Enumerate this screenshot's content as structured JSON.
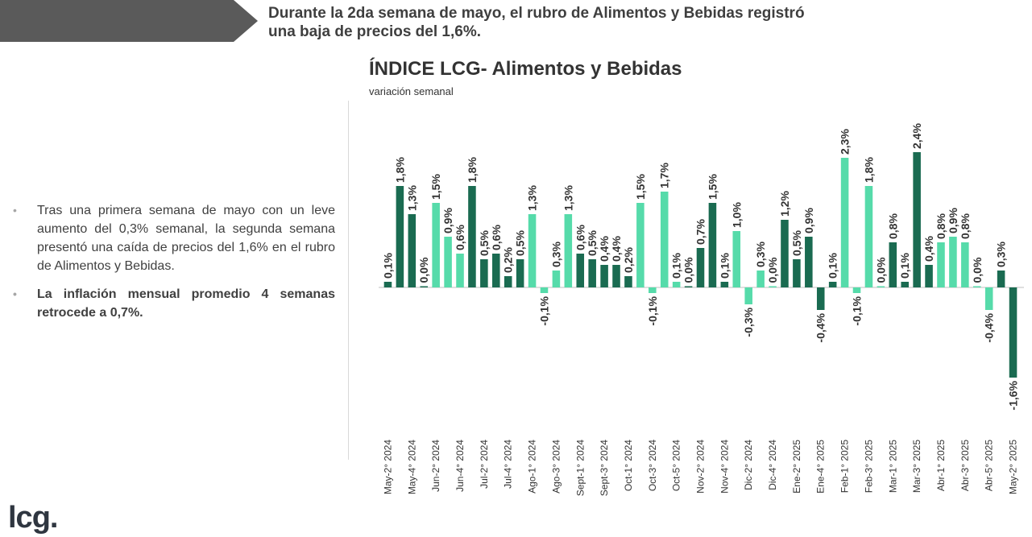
{
  "header": {
    "headline_line1": "Durante la 2da semana de mayo, el rubro de Alimentos y Bebidas registró",
    "headline_line2": "una baja de precios del 1,6%."
  },
  "bullets": [
    "Tras una primera semana de mayo con un leve aumento del 0,3% semanal, la segunda semana presentó una caída de precios del 1,6% en el rubro de Alimentos y Bebidas.",
    "La inflación mensual promedio 4 semanas retrocede a 0,7%."
  ],
  "logo": "lcg.",
  "colors": {
    "dark_bar": "#1a6b51",
    "light_bar": "#56dbaa",
    "banner": "#5a5a5a"
  },
  "chart_data": {
    "type": "bar",
    "title": "ÍNDICE LCG- Alimentos y Bebidas",
    "subtitle": "variación semanal",
    "ylim": [
      -1.7,
      2.6
    ],
    "grid": false,
    "categories": [
      "May-2° 2024",
      "",
      "May-4° 2024",
      "",
      "Jun-2° 2024",
      "",
      "Jun-4° 2024",
      "",
      "Jul-2° 2024",
      "",
      "Jul-4° 2024",
      "",
      "Ago-1° 2024",
      "",
      "Ago-3° 2024",
      "",
      "Sept-1° 2024",
      "",
      "Sept-3° 2024",
      "",
      "Oct-1° 2024",
      "",
      "Oct-3° 2024",
      "",
      "Oct-5° 2024",
      "",
      "Nov-2° 2024",
      "",
      "Nov-4° 2024",
      "",
      "Dic-2° 2024",
      "",
      "Dic-4° 2024",
      "",
      "Ene-2° 2025",
      "",
      "Ene-4° 2025",
      "",
      "Feb-1° 2025",
      "",
      "Feb-3° 2025",
      "",
      "Mar-1° 2025",
      "",
      "Mar-3° 2025",
      "",
      "Abr-1° 2025",
      "",
      "Abr-3° 2025",
      "",
      "Abr-5° 2025",
      "",
      "May-2° 2025"
    ],
    "values": [
      0.1,
      1.8,
      1.3,
      0.0,
      1.5,
      0.9,
      0.6,
      1.8,
      0.5,
      0.6,
      0.2,
      0.5,
      1.3,
      -0.1,
      0.3,
      1.3,
      0.6,
      0.5,
      0.4,
      0.4,
      0.2,
      1.5,
      -0.1,
      1.7,
      0.1,
      0.0,
      0.7,
      1.5,
      0.1,
      1.0,
      -0.3,
      0.3,
      0.0,
      1.2,
      0.5,
      0.9,
      -0.4,
      0.1,
      2.3,
      -0.1,
      1.8,
      0.0,
      0.8,
      0.1,
      2.4,
      0.4,
      0.8,
      0.9,
      0.8,
      0.0,
      -0.4,
      0.3,
      -1.6
    ],
    "labels": [
      "0,1%",
      "1,8%",
      "1,3%",
      "0,0%",
      "1,5%",
      "0,9%",
      "0,6%",
      "1,8%",
      "0,5%",
      "0,6%",
      "0,2%",
      "0,5%",
      "1,3%",
      "-0,1%",
      "0,3%",
      "1,3%",
      "0,6%",
      "0,5%",
      "0,4%",
      "0,4%",
      "0,2%",
      "1,5%",
      "-0,1%",
      "1,7%",
      "0,1%",
      "0,0%",
      "0,7%",
      "1,5%",
      "0,1%",
      "1,0%",
      "-0,3%",
      "0,3%",
      "0,0%",
      "1,2%",
      "0,5%",
      "0,9%",
      "-0,4%",
      "0,1%",
      "2,3%",
      "-0,1%",
      "1,8%",
      "0,0%",
      "0,8%",
      "0,1%",
      "2,4%",
      "0,4%",
      "0,8%",
      "0,9%",
      "0,8%",
      "0,0%",
      "-0,4%",
      "0,3%",
      "-1,6%"
    ],
    "bar_colors": [
      "dark",
      "dark",
      "dark",
      "dark",
      "light",
      "light",
      "light",
      "dark",
      "dark",
      "dark",
      "dark",
      "dark",
      "light",
      "light",
      "light",
      "light",
      "dark",
      "dark",
      "dark",
      "dark",
      "dark",
      "light",
      "light",
      "light",
      "light",
      "dark",
      "dark",
      "dark",
      "dark",
      "light",
      "light",
      "light",
      "light",
      "dark",
      "dark",
      "dark",
      "dark",
      "dark",
      "light",
      "light",
      "light",
      "light",
      "dark",
      "dark",
      "dark",
      "dark",
      "light",
      "light",
      "light",
      "light",
      "light",
      "dark",
      "dark"
    ]
  }
}
